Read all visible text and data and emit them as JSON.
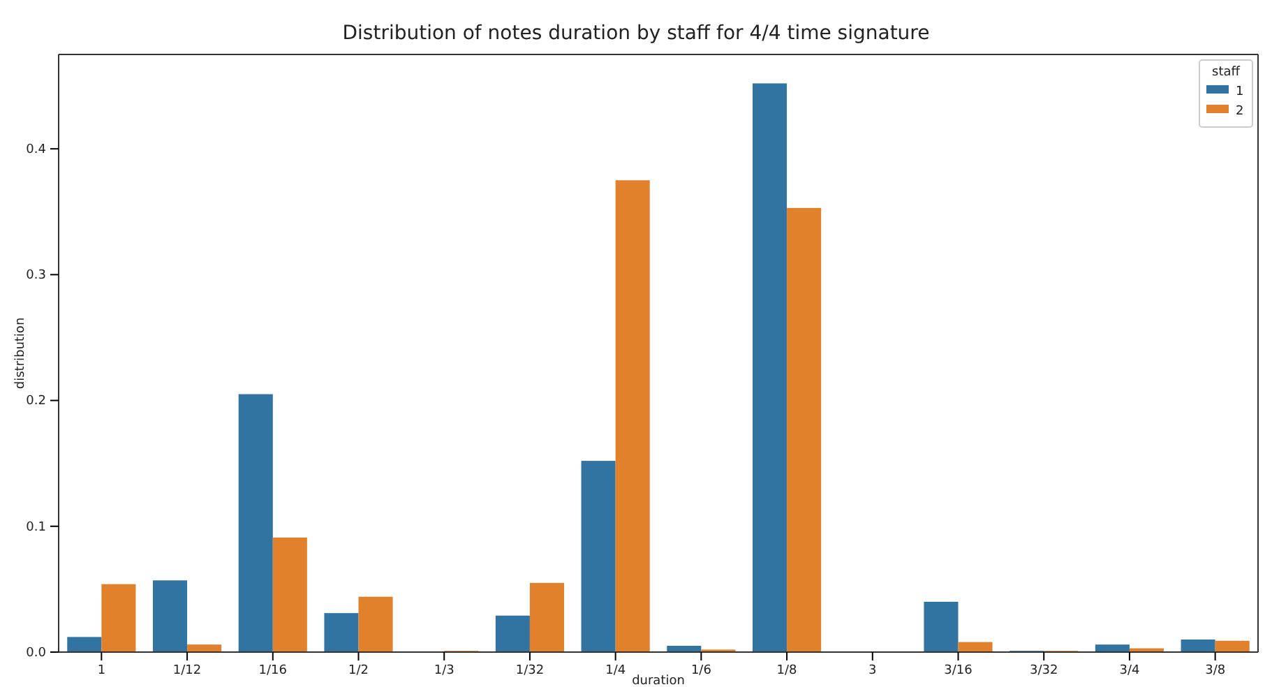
{
  "chart_data": {
    "type": "bar",
    "title": "Distribution of notes duration by staff for 4/4 time signature",
    "xlabel": "duration",
    "ylabel": "distribution",
    "legend_title": "staff",
    "categories": [
      "1",
      "1/12",
      "1/16",
      "1/2",
      "1/3",
      "1/32",
      "1/4",
      "1/6",
      "1/8",
      "3",
      "3/16",
      "3/32",
      "3/4",
      "3/8"
    ],
    "series": [
      {
        "name": "1",
        "color": "#3274a1",
        "values": [
          0.012,
          0.057,
          0.205,
          0.031,
          0,
          0.029,
          0.152,
          0.005,
          0.452,
          0,
          0.04,
          0.001,
          0.006,
          0.01
        ]
      },
      {
        "name": "2",
        "color": "#e1812c",
        "values": [
          0.054,
          0.006,
          0.091,
          0.044,
          0.001,
          0.055,
          0.375,
          0.002,
          0.353,
          0,
          0.008,
          0.001,
          0.003,
          0.009
        ]
      }
    ],
    "ylim": [
      0,
      0.475
    ],
    "yticks": [
      {
        "value": 0,
        "label": "0.0"
      },
      0.1,
      0.2,
      0.3,
      0.4
    ],
    "grid": false,
    "legend": "top right"
  }
}
